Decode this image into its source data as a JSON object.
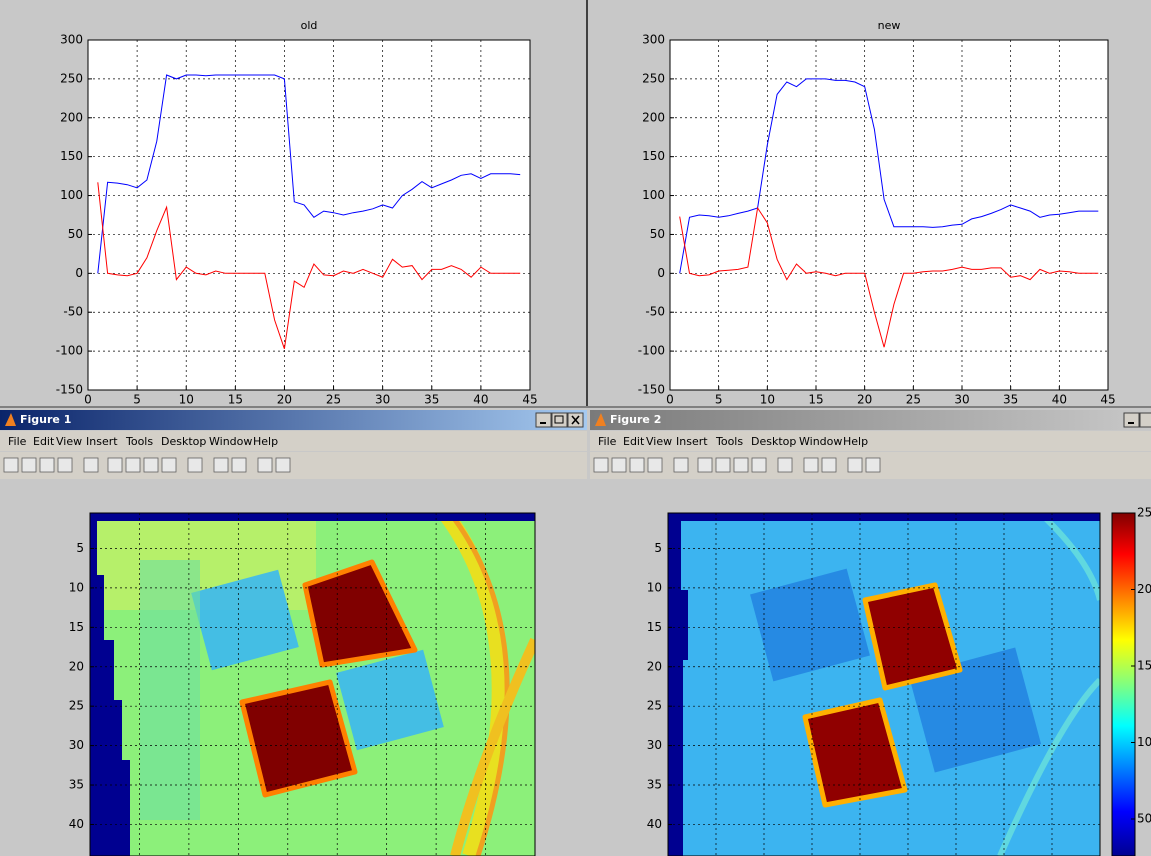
{
  "chart_data": [
    {
      "type": "line",
      "title": "old",
      "x": [
        1,
        2,
        3,
        4,
        5,
        6,
        7,
        8,
        9,
        10,
        11,
        12,
        13,
        14,
        15,
        16,
        17,
        18,
        19,
        20,
        21,
        22,
        23,
        24,
        25,
        26,
        27,
        28,
        29,
        30,
        31,
        32,
        33,
        34,
        35,
        36,
        37,
        38,
        39,
        40,
        41,
        42,
        43,
        44
      ],
      "series": [
        {
          "color": "#0000ff",
          "values": [
            0,
            117,
            116,
            114,
            110,
            120,
            170,
            255,
            250,
            255,
            255,
            254,
            255,
            255,
            255,
            255,
            255,
            255,
            255,
            250,
            92,
            88,
            72,
            80,
            78,
            75,
            78,
            80,
            83,
            88,
            84,
            100,
            108,
            118,
            110,
            115,
            120,
            126,
            128,
            122,
            128,
            128,
            128,
            127
          ]
        },
        {
          "color": "#ff0000",
          "values": [
            117,
            0,
            -2,
            -3,
            0,
            20,
            55,
            85,
            -8,
            8,
            0,
            -2,
            3,
            0,
            0,
            0,
            0,
            0,
            -60,
            -97,
            -10,
            -18,
            12,
            -2,
            -3,
            3,
            0,
            5,
            0,
            -5,
            18,
            8,
            10,
            -8,
            5,
            5,
            10,
            5,
            -5,
            8,
            0,
            0,
            0,
            0
          ]
        }
      ],
      "xlim": [
        0,
        45
      ],
      "xticks": [
        0,
        5,
        10,
        15,
        20,
        25,
        30,
        35,
        40,
        45
      ],
      "ylim": [
        -150,
        300
      ],
      "yticks": [
        -150,
        -100,
        -50,
        0,
        50,
        100,
        150,
        200,
        250,
        300
      ],
      "grid": true
    },
    {
      "type": "line",
      "title": "new",
      "x": [
        1,
        2,
        3,
        4,
        5,
        6,
        7,
        8,
        9,
        10,
        11,
        12,
        13,
        14,
        15,
        16,
        17,
        18,
        19,
        20,
        21,
        22,
        23,
        24,
        25,
        26,
        27,
        28,
        29,
        30,
        31,
        32,
        33,
        34,
        35,
        36,
        37,
        38,
        39,
        40,
        41,
        42,
        43,
        44
      ],
      "series": [
        {
          "color": "#0000ff",
          "values": [
            0,
            72,
            75,
            74,
            72,
            74,
            77,
            80,
            84,
            165,
            230,
            246,
            240,
            250,
            250,
            250,
            248,
            248,
            246,
            240,
            185,
            95,
            60,
            60,
            60,
            60,
            59,
            60,
            62,
            63,
            70,
            73,
            77,
            82,
            88,
            84,
            80,
            72,
            75,
            76,
            78,
            80,
            80,
            80
          ]
        },
        {
          "color": "#ff0000",
          "values": [
            73,
            0,
            -3,
            -2,
            3,
            4,
            5,
            8,
            84,
            65,
            18,
            -8,
            12,
            0,
            2,
            0,
            -3,
            0,
            0,
            0,
            -50,
            -95,
            -40,
            0,
            0,
            2,
            3,
            3,
            5,
            8,
            5,
            5,
            7,
            7,
            -5,
            -3,
            -8,
            5,
            0,
            3,
            2,
            0,
            0,
            0
          ]
        }
      ],
      "xlim": [
        0,
        45
      ],
      "xticks": [
        0,
        5,
        10,
        15,
        20,
        25,
        30,
        35,
        40,
        45
      ],
      "ylim": [
        -150,
        300
      ],
      "yticks": [
        -150,
        -100,
        -50,
        0,
        50,
        100,
        150,
        200,
        250,
        300
      ],
      "grid": true
    }
  ],
  "windows": [
    {
      "title": "Figure 1",
      "menu": [
        "File",
        "Edit",
        "View",
        "Insert",
        "Tools",
        "Desktop",
        "Window",
        "Help"
      ],
      "image_ylim": [
        0.5,
        44
      ],
      "image_yticks": [
        5,
        10,
        15,
        20,
        25,
        30,
        35,
        40
      ]
    },
    {
      "title": "Figure 2",
      "menu": [
        "File",
        "Edit",
        "View",
        "Insert",
        "Tools",
        "Desktop",
        "Window",
        "Help"
      ],
      "image_ylim": [
        0.5,
        44
      ],
      "image_yticks": [
        5,
        10,
        15,
        20,
        25,
        30,
        35,
        40
      ],
      "colorbar_labels": [
        "25",
        "20",
        "15",
        "10",
        "50"
      ]
    }
  ]
}
